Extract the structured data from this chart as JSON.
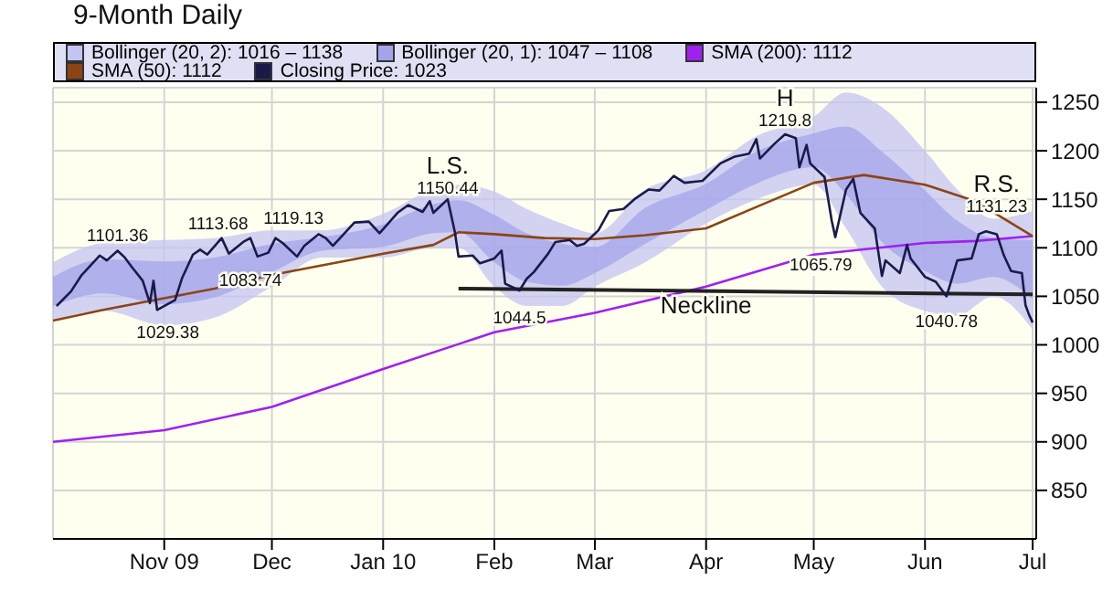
{
  "chart_data": {
    "type": "line",
    "title": "9-Month Daily",
    "legend": "top",
    "grid": true,
    "marker": "none",
    "line_style": "solid",
    "xlim": [
      "2009-10-01",
      "2010-07-02"
    ],
    "xticks": [
      {
        "value": "2009-11-01",
        "label": "Nov 09"
      },
      {
        "value": "2009-12-01",
        "label": "Dec"
      },
      {
        "value": "2010-01-01",
        "label": "Jan 10"
      },
      {
        "value": "2010-02-01",
        "label": "Feb"
      },
      {
        "value": "2010-03-01",
        "label": "Mar"
      },
      {
        "value": "2010-04-01",
        "label": "Apr"
      },
      {
        "value": "2010-05-01",
        "label": "May"
      },
      {
        "value": "2010-06-01",
        "label": "Jun"
      },
      {
        "value": "2010-07-01",
        "label": "Jul"
      }
    ],
    "ylim": [
      800,
      1265
    ],
    "yticks": [
      850,
      900,
      950,
      1000,
      1050,
      1100,
      1150,
      1200,
      1250
    ],
    "series": [
      {
        "name": "Bollinger (20, 2): 1016 – 1138",
        "type": "area",
        "color": "#c4c4f2",
        "x": [
          "2009-10-01",
          "2009-10-15",
          "2009-11-01",
          "2009-11-15",
          "2009-12-01",
          "2009-12-15",
          "2010-01-01",
          "2010-01-15",
          "2010-01-22",
          "2010-02-01",
          "2010-02-10",
          "2010-02-20",
          "2010-03-01",
          "2010-03-15",
          "2010-04-01",
          "2010-04-15",
          "2010-05-01",
          "2010-05-10",
          "2010-05-20",
          "2010-06-01",
          "2010-06-10",
          "2010-06-20",
          "2010-07-01"
        ],
        "values": [
          null,
          null,
          null,
          null,
          null,
          null,
          null,
          null,
          null,
          null,
          null,
          null,
          null,
          null,
          null,
          null,
          null,
          null,
          null,
          null,
          null,
          null,
          null
        ],
        "lower": [
          1025,
          1035,
          1020,
          1028,
          1060,
          1090,
          1090,
          1100,
          1100,
          1060,
          1040,
          1040,
          1060,
          1085,
          1125,
          1150,
          1165,
          1120,
          1060,
          1035,
          1030,
          1050,
          1016
        ],
        "upper": [
          1085,
          1105,
          1108,
          1110,
          1118,
          1118,
          1135,
          1160,
          1165,
          1158,
          1140,
          1125,
          1115,
          1160,
          1180,
          1215,
          1235,
          1260,
          1245,
          1200,
          1160,
          1130,
          1138
        ]
      },
      {
        "name": "Bollinger (20, 1): 1047 – 1108",
        "type": "area",
        "color": "#a4a4ea",
        "x": [
          "2009-10-01",
          "2009-10-15",
          "2009-11-01",
          "2009-11-15",
          "2009-12-01",
          "2009-12-15",
          "2010-01-01",
          "2010-01-15",
          "2010-01-22",
          "2010-02-01",
          "2010-02-10",
          "2010-02-20",
          "2010-03-01",
          "2010-03-15",
          "2010-04-01",
          "2010-04-15",
          "2010-05-01",
          "2010-05-10",
          "2010-05-20",
          "2010-06-01",
          "2010-06-10",
          "2010-06-20",
          "2010-07-01"
        ],
        "values": [
          null,
          null,
          null,
          null,
          null,
          null,
          null,
          null,
          null,
          null,
          null,
          null,
          null,
          null,
          null,
          null,
          null,
          null,
          null,
          null,
          null,
          null,
          null
        ],
        "lower": [
          1040,
          1053,
          1042,
          1049,
          1075,
          1097,
          1101,
          1115,
          1116,
          1085,
          1065,
          1061,
          1074,
          1104,
          1139,
          1166,
          1183,
          1155,
          1106,
          1076,
          1063,
          1070,
          1047
        ],
        "upper": [
          1070,
          1088,
          1086,
          1090,
          1104,
          1111,
          1124,
          1145,
          1149,
          1134,
          1115,
          1104,
          1101,
          1141,
          1166,
          1199,
          1218,
          1225,
          1199,
          1159,
          1128,
          1110,
          1108
        ]
      },
      {
        "name": "SMA (200): 1112",
        "type": "line",
        "color": "#a020f0",
        "x": [
          "2009-10-01",
          "2009-11-01",
          "2009-12-01",
          "2010-01-01",
          "2010-02-01",
          "2010-03-01",
          "2010-04-01",
          "2010-05-01",
          "2010-06-01",
          "2010-06-15",
          "2010-07-01"
        ],
        "values": [
          900,
          912,
          936,
          975,
          1013,
          1033,
          1060,
          1093,
          1105,
          1107,
          1112
        ]
      },
      {
        "name": "SMA (50): 1112",
        "type": "line",
        "color": "#8b4513",
        "x": [
          "2009-10-01",
          "2009-10-15",
          "2009-11-01",
          "2009-11-15",
          "2009-12-01",
          "2009-12-15",
          "2010-01-01",
          "2010-01-15",
          "2010-01-22",
          "2010-02-01",
          "2010-02-15",
          "2010-03-01",
          "2010-03-15",
          "2010-04-01",
          "2010-04-15",
          "2010-05-01",
          "2010-05-15",
          "2010-06-01",
          "2010-06-15",
          "2010-07-01"
        ],
        "values": [
          1025,
          1036,
          1048,
          1058,
          1072,
          1082,
          1094,
          1103,
          1116,
          1114,
          1110,
          1109,
          1113,
          1120,
          1142,
          1167,
          1175,
          1165,
          1148,
          1112
        ]
      },
      {
        "type": "line",
        "color": "#222222",
        "x": [
          "2010-01-22",
          "2010-07-01"
        ],
        "values": [
          1058,
          1052
        ]
      },
      {
        "name": "Closing Price: 1023",
        "type": "line",
        "color": "#1a1a4a",
        "x": [
          "2009-10-02",
          "2009-10-06",
          "2009-10-09",
          "2009-10-14",
          "2009-10-16",
          "2009-10-19",
          "2009-10-21",
          "2009-10-23",
          "2009-10-26",
          "2009-10-28",
          "2009-10-29",
          "2009-10-30",
          "2009-11-02",
          "2009-11-04",
          "2009-11-06",
          "2009-11-09",
          "2009-11-11",
          "2009-11-13",
          "2009-11-17",
          "2009-11-19",
          "2009-11-23",
          "2009-11-25",
          "2009-11-27",
          "2009-11-30",
          "2009-12-02",
          "2009-12-04",
          "2009-12-08",
          "2009-12-10",
          "2009-12-14",
          "2009-12-16",
          "2009-12-18",
          "2009-12-22",
          "2009-12-24",
          "2009-12-28",
          "2009-12-31",
          "2010-01-05",
          "2010-01-08",
          "2010-01-12",
          "2010-01-14",
          "2010-01-15",
          "2010-01-19",
          "2010-01-21",
          "2010-01-22",
          "2010-01-26",
          "2010-01-28",
          "2010-02-01",
          "2010-02-03",
          "2010-02-04",
          "2010-02-08",
          "2010-02-10",
          "2010-02-12",
          "2010-02-16",
          "2010-02-18",
          "2010-02-22",
          "2010-02-24",
          "2010-02-26",
          "2010-03-02",
          "2010-03-05",
          "2010-03-09",
          "2010-03-12",
          "2010-03-16",
          "2010-03-19",
          "2010-03-23",
          "2010-03-26",
          "2010-03-31",
          "2010-04-05",
          "2010-04-09",
          "2010-04-13",
          "2010-04-15",
          "2010-04-16",
          "2010-04-20",
          "2010-04-23",
          "2010-04-26",
          "2010-04-27",
          "2010-04-29",
          "2010-04-30",
          "2010-05-04",
          "2010-05-06",
          "2010-05-07",
          "2010-05-10",
          "2010-05-12",
          "2010-05-14",
          "2010-05-18",
          "2010-05-20",
          "2010-05-21",
          "2010-05-25",
          "2010-05-27",
          "2010-05-28",
          "2010-06-01",
          "2010-06-04",
          "2010-06-07",
          "2010-06-08",
          "2010-06-10",
          "2010-06-14",
          "2010-06-16",
          "2010-06-18",
          "2010-06-21",
          "2010-06-23",
          "2010-06-25",
          "2010-06-28",
          "2010-06-29",
          "2010-06-30",
          "2010-07-01"
        ],
        "values": [
          1040,
          1055,
          1072,
          1092,
          1087,
          1097,
          1090,
          1080,
          1066,
          1043,
          1066,
          1036,
          1042,
          1046,
          1069,
          1093,
          1098,
          1093,
          1110,
          1094,
          1106,
          1110,
          1091,
          1095,
          1110,
          1105,
          1091,
          1102,
          1114,
          1110,
          1102,
          1118,
          1126,
          1127,
          1115,
          1136,
          1144,
          1137,
          1148,
          1136,
          1150,
          1116,
          1091,
          1092,
          1084,
          1089,
          1097,
          1063,
          1056,
          1068,
          1075,
          1094,
          1106,
          1108,
          1102,
          1104,
          1118,
          1138,
          1140,
          1150,
          1160,
          1159,
          1174,
          1167,
          1169,
          1187,
          1194,
          1197,
          1212,
          1192,
          1207,
          1217,
          1213,
          1183,
          1206,
          1187,
          1173,
          1128,
          1111,
          1160,
          1171,
          1136,
          1120,
          1071,
          1087,
          1074,
          1103,
          1089,
          1070,
          1065,
          1050,
          1062,
          1087,
          1089,
          1114,
          1117,
          1114,
          1092,
          1076,
          1074,
          1041,
          1031,
          1023
        ]
      }
    ],
    "annotations": [
      {
        "text": "1101.36",
        "x": "2009-10-19",
        "y": 1101.36
      },
      {
        "text": "1029.38",
        "x": "2009-11-02",
        "y": 1029.38
      },
      {
        "text": "1113.68",
        "x": "2009-11-16",
        "y": 1113.68
      },
      {
        "text": "1119.13",
        "x": "2009-12-07",
        "y": 1119.13
      },
      {
        "text": "1083.74",
        "x": "2009-11-25",
        "y": 1083.74
      },
      {
        "text": "1150.44",
        "x": "2010-01-19",
        "y": 1150.44
      },
      {
        "text": "1044.5",
        "x": "2010-02-08",
        "y": 1044.5
      },
      {
        "text": "1219.8",
        "x": "2010-04-23",
        "y": 1219.8
      },
      "1065.79",
      {
        "text": "1040.78",
        "x": "2010-06-07",
        "y": 1040.78
      },
      {
        "text": "1131.23",
        "x": "2010-06-21",
        "y": 1131.23
      },
      {
        "text": "L.S.",
        "x": "2010-01-19",
        "y": 1150.44
      },
      {
        "text": "H",
        "x": "2010-04-23",
        "y": 1219.8
      },
      {
        "text": "R.S.",
        "x": "2010-06-21",
        "y": 1131.23
      },
      {
        "text": "Neckline",
        "x": "2010-04-01",
        "y": 1055
      }
    ]
  }
}
